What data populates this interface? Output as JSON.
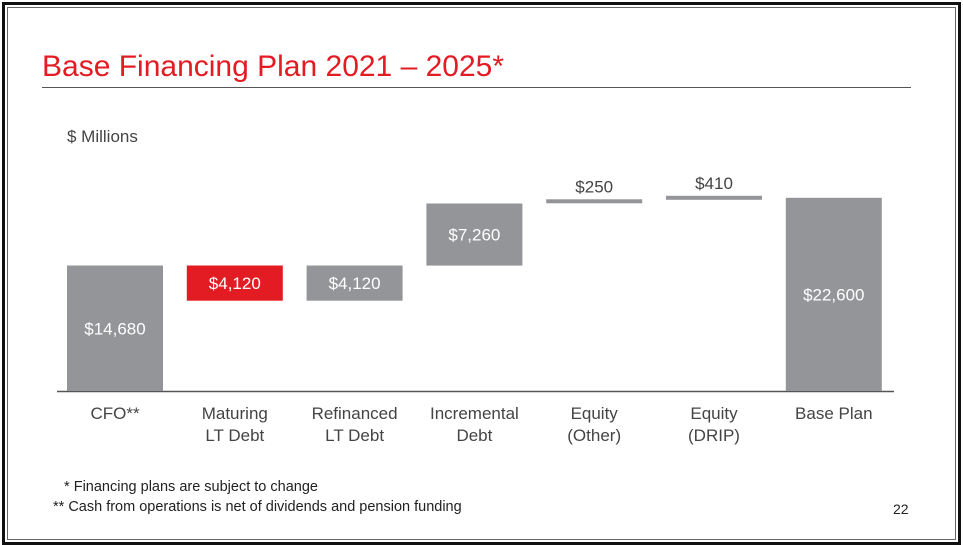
{
  "slide": {
    "title": "Base Financing Plan 2021 – 2025*",
    "unit_label": "$ Millions",
    "footnotes": [
      "  * Financing plans are subject to change",
      "** Cash from operations is net of dividends and pension funding"
    ],
    "page_number": "22"
  },
  "chart_data": {
    "type": "bar",
    "subtype": "waterfall",
    "categories": [
      [
        "CFO**"
      ],
      [
        "Maturing",
        "LT Debt"
      ],
      [
        "Refinanced",
        "LT Debt"
      ],
      [
        "Incremental",
        "Debt"
      ],
      [
        "Equity",
        "(Other)"
      ],
      [
        "Equity",
        "(DRIP)"
      ],
      [
        "Base Plan"
      ]
    ],
    "values": [
      14680,
      -4120,
      4120,
      7260,
      250,
      410,
      22600
    ],
    "value_labels": [
      "$14,680",
      "$4,120",
      "$4,120",
      "$7,260",
      "$250",
      "$410",
      "$22,600"
    ],
    "steps": [
      {
        "start": 0,
        "end": 14680
      },
      {
        "start": 10560,
        "end": 14680
      },
      {
        "start": 10560,
        "end": 14680
      },
      {
        "start": 14680,
        "end": 21940
      },
      {
        "start": 21940,
        "end": 22190
      },
      {
        "start": 22190,
        "end": 22600
      },
      {
        "start": 0,
        "end": 22600
      }
    ],
    "ylim": [
      0,
      23400
    ],
    "colors": {
      "positive": "#939598",
      "negative": "#e31b23",
      "label_inside": "#ffffff",
      "label_outside": "#444444",
      "axis_text": "#444444",
      "baseline": "#555555"
    }
  }
}
